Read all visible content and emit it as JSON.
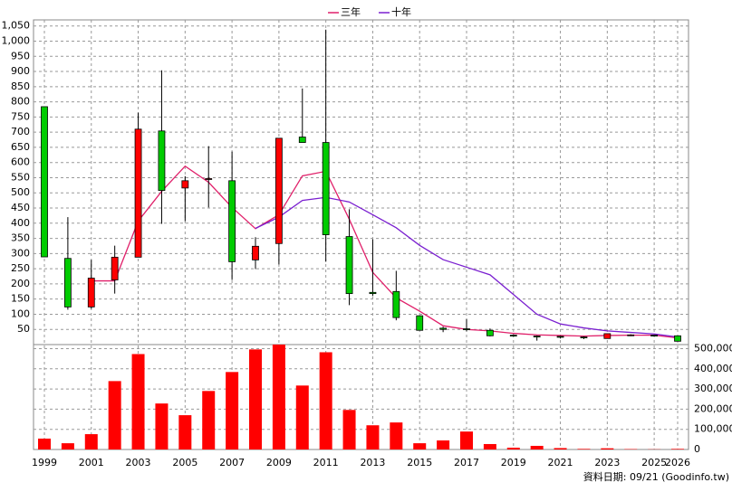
{
  "chart_data": [
    {
      "type": "candlestick",
      "legend": "top",
      "grid": true,
      "up_color": "#ff0000",
      "down_color": "#00cc00",
      "categories": [
        "1999",
        null,
        "2001",
        null,
        "2003",
        null,
        "2005",
        null,
        "2007",
        null,
        "2009",
        null,
        "2011",
        null,
        "2013",
        null,
        "2015",
        null,
        "2017",
        null,
        "2019",
        null,
        "2021",
        null,
        "2023",
        null,
        "2025",
        "2026"
      ],
      "open": [
        784,
        284,
        124,
        213,
        288,
        704,
        516,
        545,
        540,
        279,
        333,
        684,
        666,
        356,
        172,
        175,
        95,
        54,
        52,
        47,
        31,
        28,
        27,
        25,
        20,
        31,
        31,
        29
      ],
      "high": [
        784,
        420,
        279,
        326,
        764,
        904,
        555,
        654,
        636,
        354,
        680,
        844,
        1038,
        446,
        347,
        243,
        95,
        59,
        84,
        53,
        34,
        30,
        29,
        27,
        36,
        34,
        32,
        29
      ],
      "low": [
        289,
        115,
        118,
        168,
        288,
        398,
        407,
        452,
        213,
        249,
        264,
        666,
        273,
        130,
        160,
        80,
        47,
        41,
        44,
        27,
        26,
        13,
        20,
        18,
        20,
        28,
        28,
        11
      ],
      "close": [
        289,
        124,
        219,
        288,
        710,
        508,
        540,
        547,
        273,
        324,
        680,
        666,
        362,
        168,
        168,
        89,
        47,
        50,
        50,
        29,
        29,
        26,
        26,
        24,
        36,
        32,
        30,
        11
      ],
      "series": [
        {
          "name": "三年",
          "color": "#e0206a",
          "values": [
            null,
            null,
            210,
            210,
            407,
            505,
            588,
            535,
            452,
            382,
            428,
            556,
            571,
            413,
            238,
            154,
            110,
            62,
            50,
            45,
            37,
            32,
            30,
            28,
            30,
            31,
            31,
            22
          ]
        },
        {
          "name": "十年",
          "color": "#7a1fd0",
          "values": [
            null,
            null,
            null,
            null,
            null,
            null,
            null,
            null,
            null,
            383,
            420,
            475,
            485,
            470,
            428,
            385,
            327,
            280,
            255,
            230,
            165,
            100,
            68,
            55,
            45,
            40,
            35,
            25
          ]
        }
      ],
      "ylim": [
        0,
        1070
      ],
      "yticks": [
        50,
        100,
        150,
        200,
        250,
        300,
        350,
        400,
        450,
        500,
        550,
        600,
        650,
        700,
        750,
        800,
        850,
        900,
        950,
        {
          "value": 1000,
          "label": "1,000"
        },
        {
          "value": 1050,
          "label": "1,050"
        }
      ]
    },
    {
      "type": "bar",
      "color": "#ff0000",
      "values": [
        54000,
        31000,
        76000,
        339000,
        473000,
        228000,
        170000,
        290000,
        384000,
        496000,
        520000,
        317000,
        482000,
        196000,
        120000,
        134000,
        31000,
        45000,
        89000,
        27000,
        9000,
        18000,
        7000,
        3000,
        6000,
        2000,
        1000,
        3000
      ],
      "ylim": [
        0,
        520000
      ],
      "yticks": [
        0,
        {
          "value": 100000,
          "label": "100,000"
        },
        {
          "value": 200000,
          "label": "200,000"
        },
        {
          "value": 300000,
          "label": "300,000"
        },
        {
          "value": 400000,
          "label": "400,000"
        },
        {
          "value": 500000,
          "label": "500,000"
        }
      ],
      "footnote": "資料日期: 09/21  (Goodinfo.tw)"
    }
  ]
}
